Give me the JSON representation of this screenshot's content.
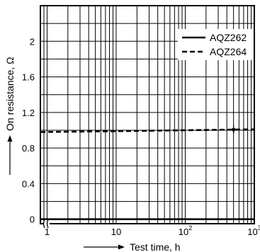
{
  "chart_data": {
    "type": "line",
    "xlabel": "Test time, h",
    "ylabel": "On resistance, Ω",
    "x_scale": "log",
    "xlim": [
      0.8,
      1000
    ],
    "ylim": [
      -0.05,
      2.4
    ],
    "yticks": [
      {
        "v": 0,
        "label": "0"
      },
      {
        "v": 0.4,
        "label": "0.4"
      },
      {
        "v": 0.8,
        "label": "0.8"
      },
      {
        "v": 1.2,
        "label": "1.2"
      },
      {
        "v": 1.6,
        "label": "1.6"
      },
      {
        "v": 2.0,
        "label": "2"
      }
    ],
    "xticks": [
      {
        "v": 1,
        "base": "1",
        "exp": ""
      },
      {
        "v": 10,
        "base": "10",
        "exp": ""
      },
      {
        "v": 100,
        "base": "10",
        "exp": "2"
      },
      {
        "v": 1000,
        "base": "10",
        "exp": "3"
      }
    ],
    "grid": true,
    "axis_break": true,
    "legend_position": "top-right",
    "series": [
      {
        "name": "AQZ262",
        "style": "solid",
        "x": [
          0.8,
          1000
        ],
        "y": [
          0.0,
          0.0
        ]
      },
      {
        "name": "AQZ264",
        "style": "dashed",
        "x": [
          0.8,
          10,
          100,
          1000
        ],
        "y": [
          0.98,
          0.99,
          1.0,
          1.01
        ],
        "markers_x": [
          500
        ]
      }
    ]
  }
}
